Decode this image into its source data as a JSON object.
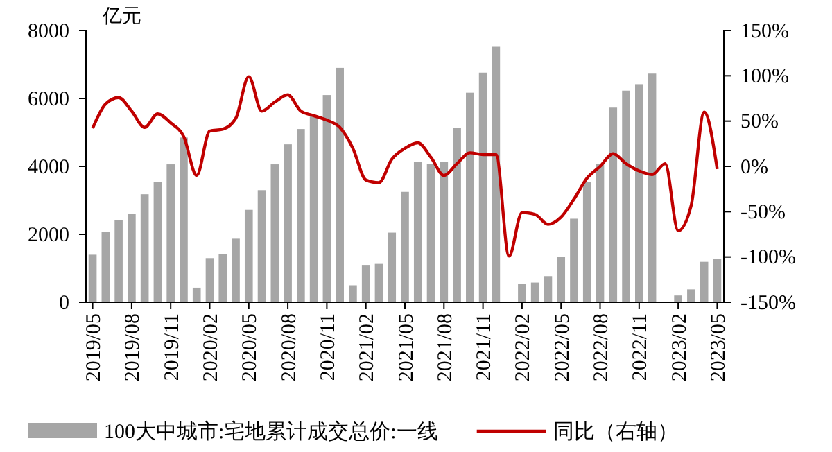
{
  "chart_data": {
    "type": "bar",
    "ylabel": "亿元",
    "categories": [
      "2019/05",
      null,
      null,
      "2019/08",
      null,
      null,
      "2019/11",
      null,
      null,
      "2020/02",
      null,
      null,
      "2020/05",
      null,
      null,
      "2020/08",
      null,
      null,
      "2020/11",
      null,
      null,
      "2021/02",
      null,
      null,
      "2021/05",
      null,
      null,
      "2021/08",
      null,
      null,
      "2021/11",
      null,
      null,
      "2022/02",
      null,
      null,
      "2022/05",
      null,
      null,
      "2022/08",
      null,
      null,
      "2022/11",
      null,
      null,
      "2023/02",
      null,
      null,
      "2023/05"
    ],
    "series": [
      {
        "name": "100大中城市:宅地累计成交总价:一线",
        "color": "#a6a6a6",
        "values": [
          1400,
          2070,
          2420,
          2600,
          3180,
          3540,
          4060,
          4850,
          430,
          1300,
          1420,
          1870,
          2720,
          3300,
          4060,
          4650,
          5100,
          5500,
          6100,
          6900,
          500,
          1100,
          1130,
          2050,
          3250,
          4140,
          4070,
          4140,
          5130,
          6170,
          6760,
          7520,
          null,
          540,
          580,
          770,
          1330,
          2460,
          3530,
          4070,
          5730,
          6230,
          6420,
          6730,
          null,
          200,
          380,
          1190,
          1280
        ]
      },
      {
        "name": "同比（右轴）",
        "type": "line",
        "axis": "y2",
        "color": "#c00000",
        "values": [
          42,
          69,
          76,
          61,
          43,
          58,
          48,
          33,
          -10,
          39,
          41,
          53,
          99,
          61,
          71,
          79,
          61,
          56,
          51,
          43,
          20,
          -15,
          -18,
          8,
          20,
          26,
          10,
          -10,
          3,
          15,
          13,
          13,
          -99,
          -51,
          -53,
          -64,
          -56,
          -36,
          -13,
          0,
          14,
          3,
          -5,
          -9,
          3,
          -71,
          -43,
          60,
          -3
        ]
      }
    ],
    "ylim": [
      0,
      8000
    ],
    "yticks": [
      0,
      2000,
      4000,
      6000,
      8000
    ],
    "y2lim": [
      -150,
      150
    ],
    "y2ticks": [
      {
        "value": -150,
        "label": "-150%"
      },
      {
        "value": -100,
        "label": "-100%"
      },
      {
        "value": -50,
        "label": "-50%"
      },
      {
        "value": 0,
        "label": "0%"
      },
      {
        "value": 50,
        "label": "50%"
      },
      {
        "value": 100,
        "label": "100%"
      },
      {
        "value": 150,
        "label": "150%"
      }
    ],
    "legend": "bottom",
    "line_style": "solid",
    "marker": "none"
  }
}
